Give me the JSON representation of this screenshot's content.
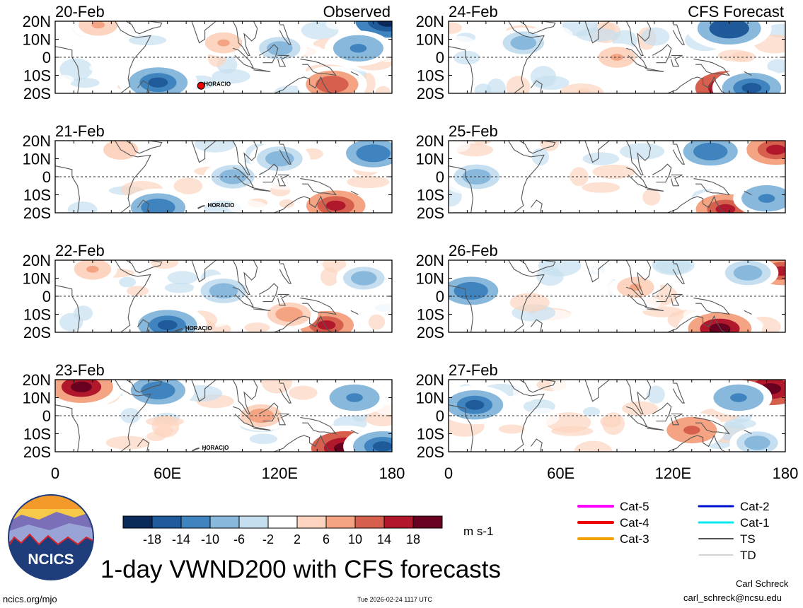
{
  "title": "1-day VWND200 with CFS forecasts",
  "units": "m s-1",
  "logo_text": "NCICS",
  "footer": {
    "left": "ncics.org/mjo",
    "center": "Tue 2026-02-24 1117 UTC",
    "right_name": "Carl Schreck",
    "right_email": "carl_schreck@ncsu.edu"
  },
  "column_labels": {
    "left": "Observed",
    "right": "CFS Forecast"
  },
  "storm_label": "HORACIO",
  "track_legend": [
    {
      "label": "Cat-5",
      "color": "#ff00ff",
      "width": 4
    },
    {
      "label": "Cat-4",
      "color": "#ee0000",
      "width": 4
    },
    {
      "label": "Cat-3",
      "color": "#f0a000",
      "width": 4
    },
    {
      "label": "Cat-2",
      "color": "#0010d0",
      "width": 3
    },
    {
      "label": "Cat-1",
      "color": "#00e8f0",
      "width": 3
    },
    {
      "label": "TS",
      "color": "#555555",
      "width": 2
    },
    {
      "label": "TD",
      "color": "#aaaaaa",
      "width": 1
    }
  ],
  "chart_data": {
    "type": "heatmap",
    "variable": "200-hPa meridional wind",
    "xlim": [
      0,
      180
    ],
    "ylim": [
      -20,
      20
    ],
    "x_ticks": [
      "0",
      "60E",
      "120E",
      "180"
    ],
    "y_ticks": [
      "20N",
      "10N",
      "0",
      "10S",
      "20S"
    ],
    "colorbar": {
      "tick_labels": [
        "-18",
        "-14",
        "-10",
        "-6",
        "-2",
        "2",
        "6",
        "10",
        "14",
        "18"
      ],
      "colors": [
        "#0a2a5a",
        "#1f5a9a",
        "#3f84bf",
        "#88b8dc",
        "#c6dff0",
        "#ffffff",
        "#fcd4bf",
        "#f4a383",
        "#d6604d",
        "#b2182b",
        "#6a0020"
      ]
    },
    "panels": [
      {
        "date": "20-Feb",
        "type": "Observed",
        "storm": {
          "label": "HORACIO",
          "lon": 78,
          "lat": -15,
          "category": "Cat-4"
        },
        "features": [
          {
            "lon": 178,
            "lat": 20,
            "v": -19
          },
          {
            "lon": 162,
            "lat": 5,
            "v": -12
          },
          {
            "lon": 55,
            "lat": -14,
            "v": -16
          },
          {
            "lon": 148,
            "lat": -15,
            "v": 13
          },
          {
            "lon": 120,
            "lat": 5,
            "v": -8
          },
          {
            "lon": 90,
            "lat": 8,
            "v": 6
          },
          {
            "lon": 23,
            "lat": 18,
            "v": 7
          }
        ]
      },
      {
        "date": "21-Feb",
        "type": "Observed",
        "storm": {
          "label": "HORACIO",
          "lon": 80,
          "lat": -16,
          "category": "TS"
        },
        "features": [
          {
            "lon": 170,
            "lat": 13,
            "v": -14
          },
          {
            "lon": 150,
            "lat": -16,
            "v": 16
          },
          {
            "lon": 95,
            "lat": 0,
            "v": -9
          },
          {
            "lon": 55,
            "lat": -17,
            "v": -14
          },
          {
            "lon": 35,
            "lat": 15,
            "v": 5
          },
          {
            "lon": 120,
            "lat": 10,
            "v": -10
          }
        ]
      },
      {
        "date": "22-Feb",
        "type": "Observed",
        "storm": {
          "label": "HORACIO",
          "lon": 68,
          "lat": -18,
          "category": "TS"
        },
        "features": [
          {
            "lon": 145,
            "lat": -16,
            "v": 14
          },
          {
            "lon": 60,
            "lat": -16,
            "v": -16
          },
          {
            "lon": 90,
            "lat": 3,
            "v": -10
          },
          {
            "lon": 20,
            "lat": 15,
            "v": 6
          },
          {
            "lon": 165,
            "lat": 10,
            "v": -8
          },
          {
            "lon": 125,
            "lat": -10,
            "v": 9
          }
        ]
      },
      {
        "date": "23-Feb",
        "type": "Observed",
        "storm": {
          "label": "HORACIO",
          "lon": 77,
          "lat": -18,
          "category": "TS"
        },
        "features": [
          {
            "lon": 14,
            "lat": 16,
            "v": 18
          },
          {
            "lon": 155,
            "lat": -18,
            "v": 20
          },
          {
            "lon": 175,
            "lat": -17,
            "v": -16
          },
          {
            "lon": 55,
            "lat": 14,
            "v": -14
          },
          {
            "lon": 160,
            "lat": 10,
            "v": -12
          },
          {
            "lon": 110,
            "lat": 0,
            "v": 8
          }
        ]
      },
      {
        "date": "24-Feb",
        "type": "CFS Forecast",
        "features": [
          {
            "lon": 150,
            "lat": -17,
            "v": 20
          },
          {
            "lon": 162,
            "lat": -17,
            "v": -16
          },
          {
            "lon": 150,
            "lat": 16,
            "v": -18
          },
          {
            "lon": 40,
            "lat": 8,
            "v": -8
          },
          {
            "lon": 90,
            "lat": 0,
            "v": 6
          }
        ]
      },
      {
        "date": "25-Feb",
        "type": "CFS Forecast",
        "features": [
          {
            "lon": 175,
            "lat": 15,
            "v": 16
          },
          {
            "lon": 148,
            "lat": -18,
            "v": 16
          },
          {
            "lon": 140,
            "lat": 14,
            "v": -14
          },
          {
            "lon": 15,
            "lat": 0,
            "v": -10
          },
          {
            "lon": 170,
            "lat": -12,
            "v": -12
          }
        ]
      },
      {
        "date": "26-Feb",
        "type": "CFS Forecast",
        "features": [
          {
            "lon": 178,
            "lat": 14,
            "v": 14
          },
          {
            "lon": 145,
            "lat": -18,
            "v": 18
          },
          {
            "lon": 12,
            "lat": 3,
            "v": -14
          },
          {
            "lon": 160,
            "lat": 13,
            "v": -10
          },
          {
            "lon": 100,
            "lat": 5,
            "v": 6
          }
        ]
      },
      {
        "date": "27-Feb",
        "type": "CFS Forecast",
        "features": [
          {
            "lon": 172,
            "lat": 15,
            "v": 19
          },
          {
            "lon": 14,
            "lat": 6,
            "v": -15
          },
          {
            "lon": 155,
            "lat": 10,
            "v": -12
          },
          {
            "lon": 130,
            "lat": -8,
            "v": 12
          },
          {
            "lon": 165,
            "lat": -15,
            "v": -8
          }
        ]
      }
    ]
  }
}
